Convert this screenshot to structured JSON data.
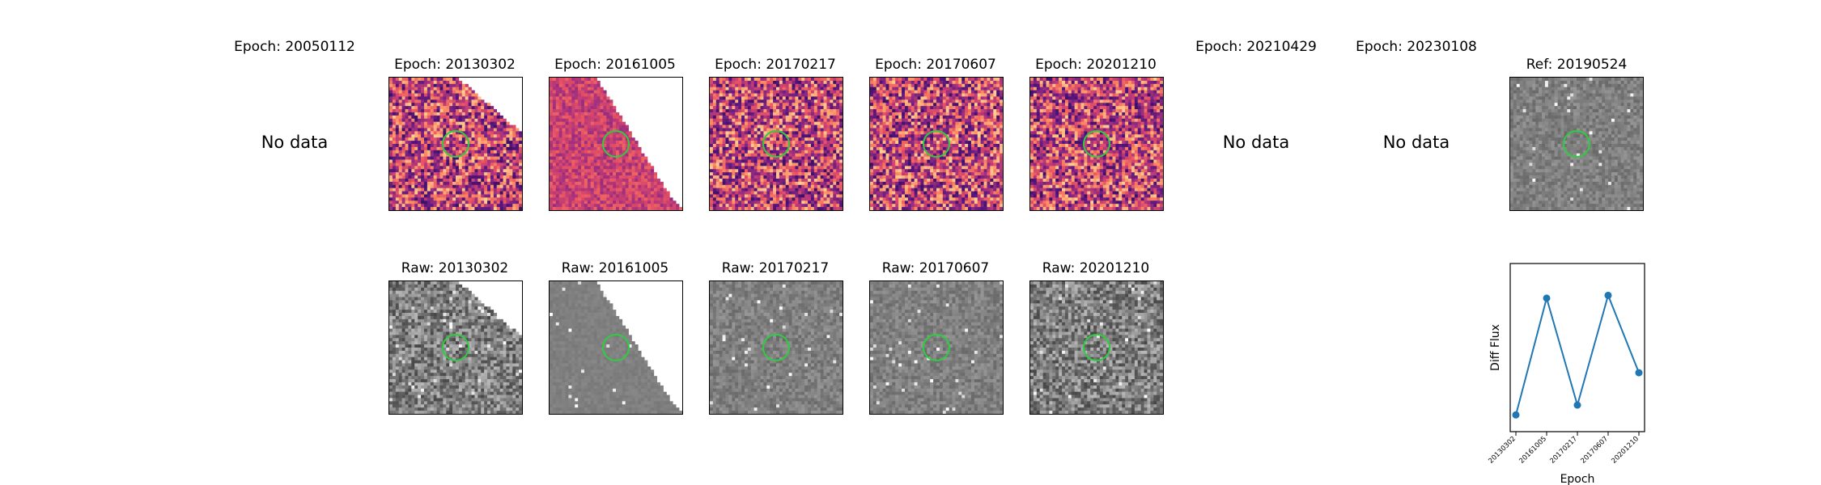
{
  "figure": {
    "top_row": [
      {
        "title": "Epoch: 20050112",
        "status": "No data"
      },
      {
        "title": "Epoch: 20130302",
        "status": "",
        "colormap": "magma",
        "edge": "triangle-upper-right"
      },
      {
        "title": "Epoch: 20161005",
        "status": "",
        "colormap": "magma",
        "edge": "diagonal-right"
      },
      {
        "title": "Epoch: 20170217",
        "status": "",
        "colormap": "magma",
        "edge": "none"
      },
      {
        "title": "Epoch: 20170607",
        "status": "",
        "colormap": "magma",
        "edge": "none"
      },
      {
        "title": "Epoch: 20201210",
        "status": "",
        "colormap": "magma",
        "edge": "none"
      },
      {
        "title": "Epoch: 20210429",
        "status": "No data"
      },
      {
        "title": "Epoch: 20230108",
        "status": "No data"
      },
      {
        "title": "Ref: 20190524",
        "status": "",
        "colormap": "gray",
        "edge": "none"
      }
    ],
    "bottom_row": [
      {
        "title": "Raw: 20130302",
        "colormap": "gray",
        "edge": "triangle-upper-right"
      },
      {
        "title": "Raw: 20161005",
        "colormap": "gray",
        "edge": "diagonal-right"
      },
      {
        "title": "Raw: 20170217",
        "colormap": "gray",
        "edge": "none"
      },
      {
        "title": "Raw: 20170607",
        "colormap": "gray",
        "edge": "none"
      },
      {
        "title": "Raw: 20201210",
        "colormap": "gray",
        "edge": "none"
      }
    ],
    "circle_color": "#2ecc40"
  },
  "chart_data": {
    "type": "line",
    "categories": [
      "20130302",
      "20161005",
      "20170217",
      "20170607",
      "20201210"
    ],
    "values": [
      0.05,
      0.88,
      0.12,
      0.9,
      0.35
    ],
    "xlabel": "Epoch",
    "ylabel": "Diff Flux",
    "color": "#1f77b4",
    "y_ticks_shown": false
  }
}
